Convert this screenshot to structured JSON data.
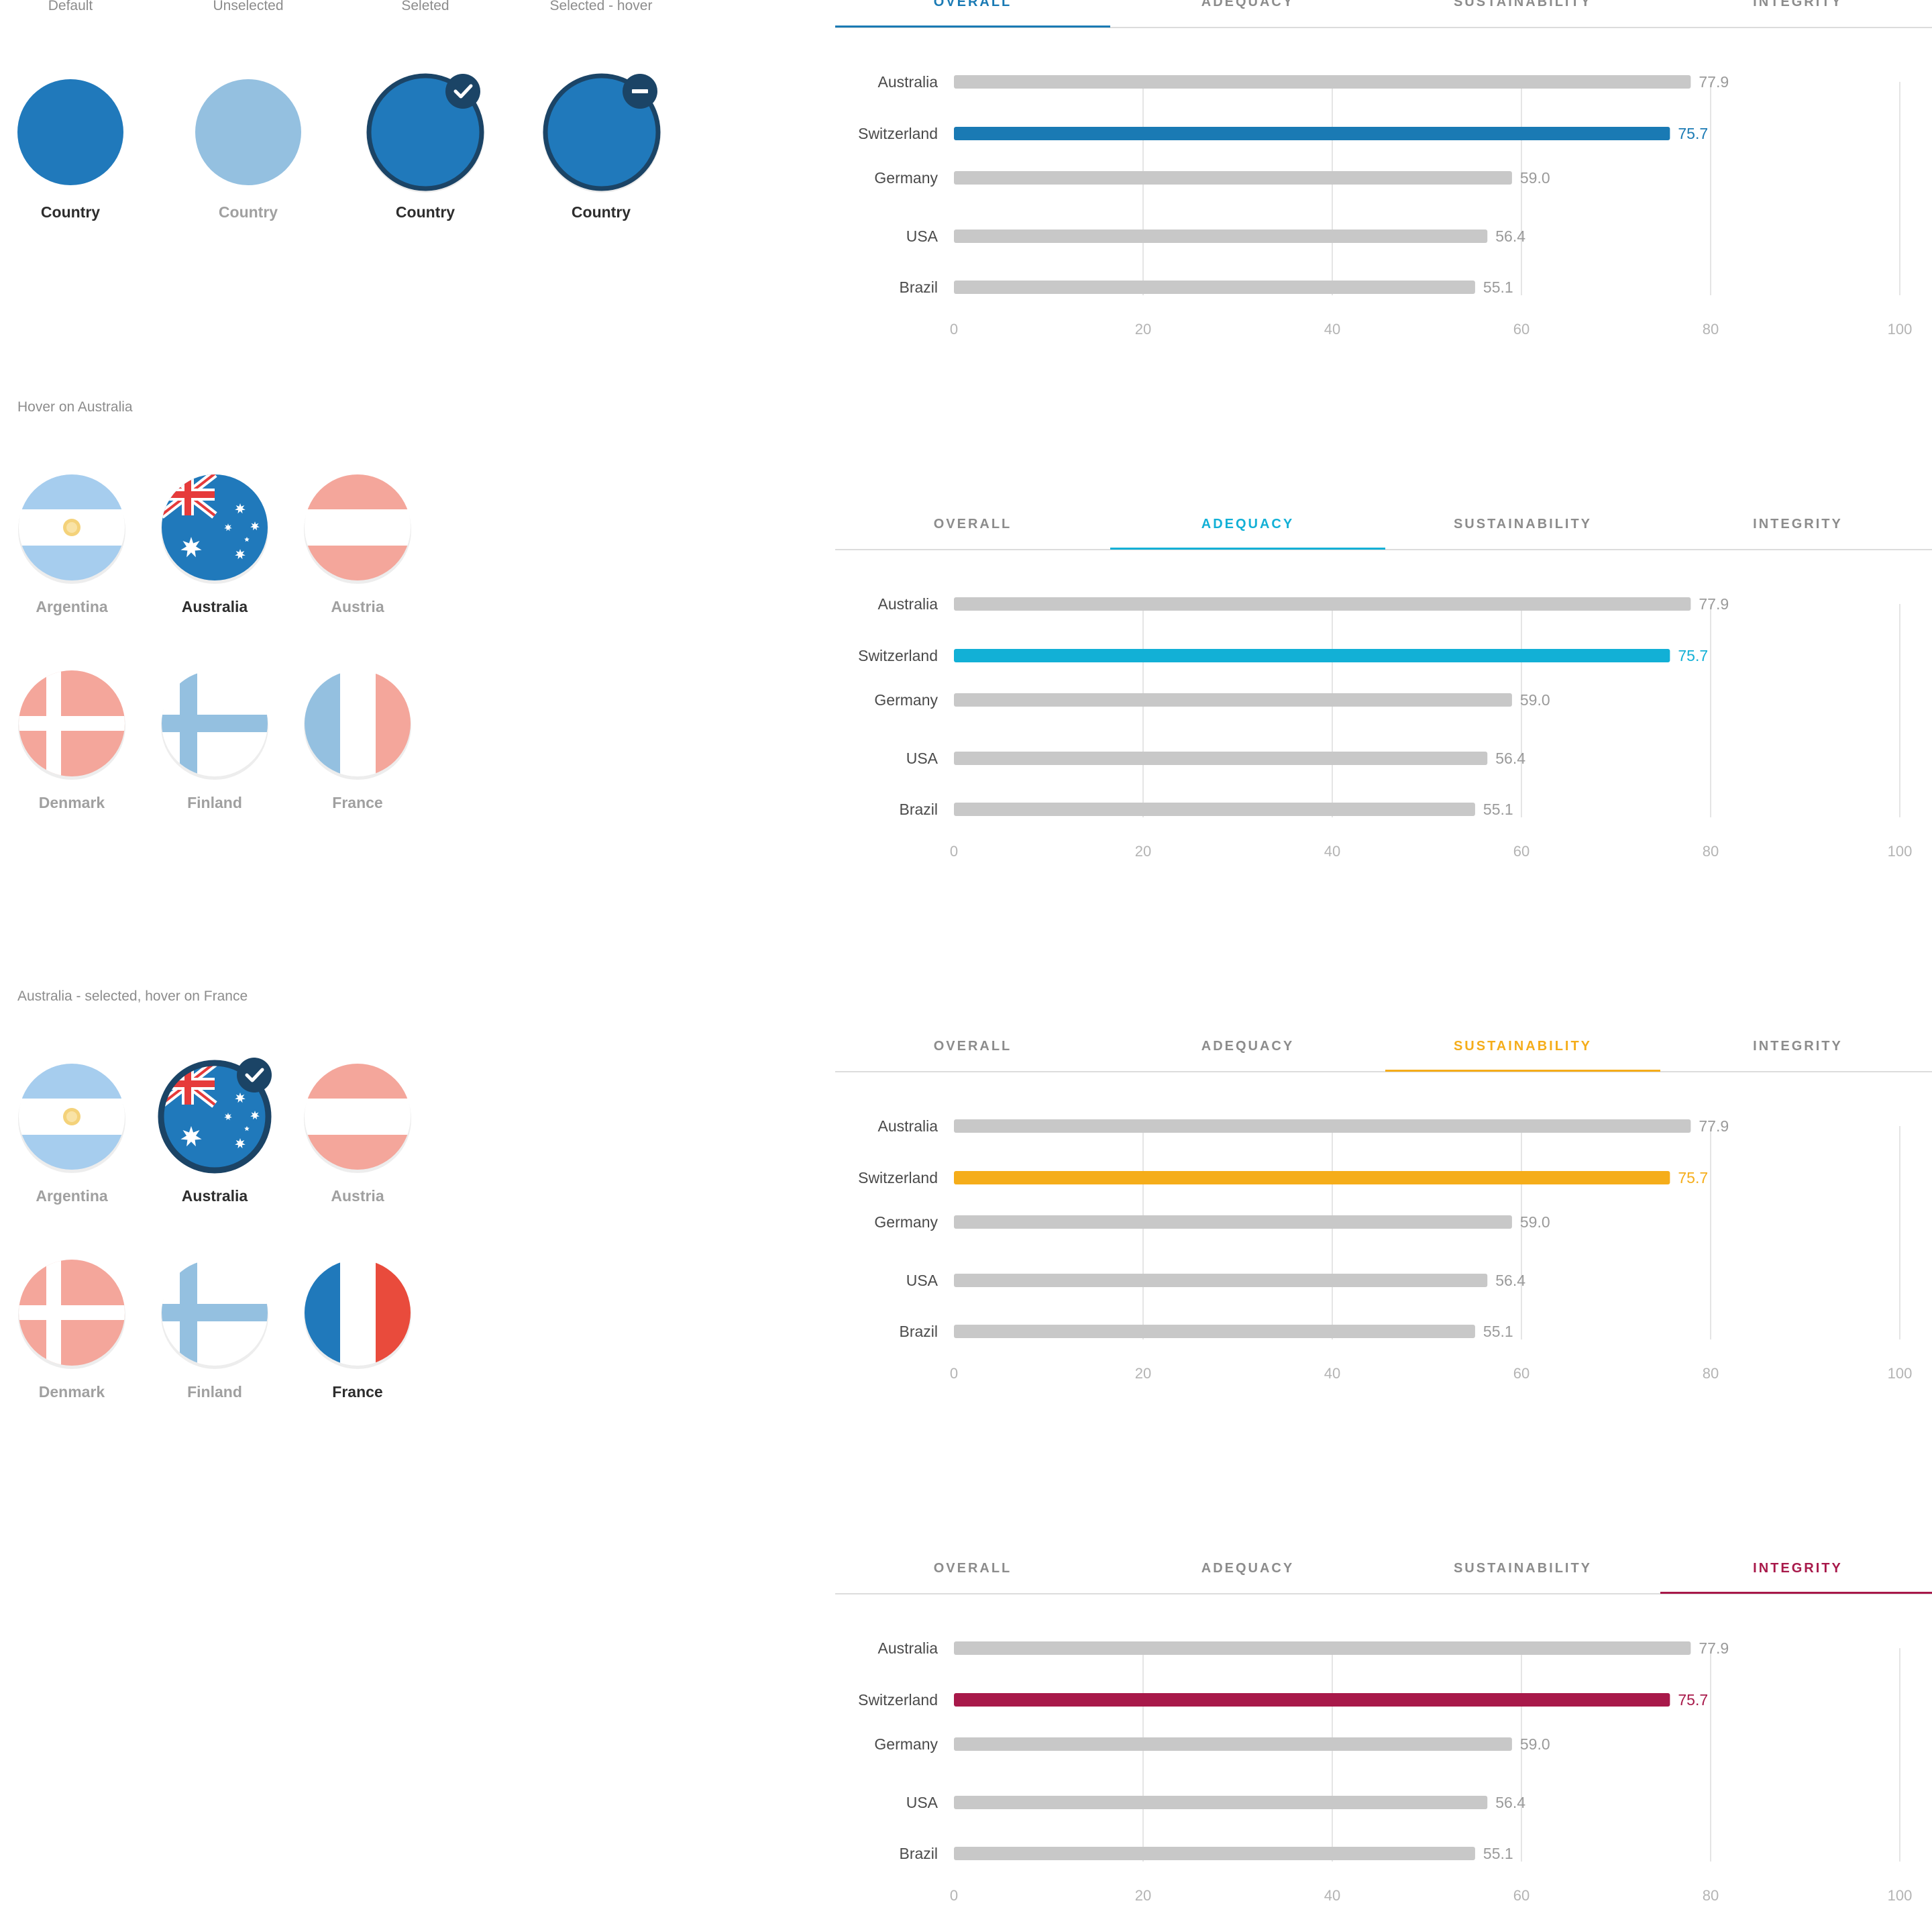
{
  "states": {
    "labels": [
      "Default",
      "Unselected",
      "Seleted",
      "Selected - hover"
    ],
    "circle_label": "Country",
    "colors": {
      "default": "#2079bb",
      "unselected": "#94c0e0",
      "selected_ring": "#1b4466"
    }
  },
  "section_hover": {
    "caption": "Hover on Australia"
  },
  "section_selected": {
    "caption": "Australia - selected, hover on France"
  },
  "grid1": {
    "items": [
      {
        "name": "Argentina",
        "state": "faded"
      },
      {
        "name": "Australia",
        "state": "hover"
      },
      {
        "name": "Austria",
        "state": "faded"
      },
      {
        "name": "Denmark",
        "state": "faded"
      },
      {
        "name": "Finland",
        "state": "faded"
      },
      {
        "name": "France",
        "state": "faded"
      }
    ]
  },
  "grid2": {
    "items": [
      {
        "name": "Argentina",
        "state": "faded"
      },
      {
        "name": "Australia",
        "state": "selected"
      },
      {
        "name": "Austria",
        "state": "faded"
      },
      {
        "name": "Denmark",
        "state": "faded"
      },
      {
        "name": "Finland",
        "state": "faded"
      },
      {
        "name": "France",
        "state": "hover"
      }
    ]
  },
  "tabs": [
    "OVERALL",
    "ADEQUACY",
    "SUSTAINABILITY",
    "INTEGRITY"
  ],
  "tab_colors": {
    "inactive": "#8c8c8c",
    "OVERALL": "#1a7ab4",
    "ADEQUACY": "#12b0d6",
    "SUSTAINABILITY": "#f5ad1a",
    "INTEGRITY": "#a8194a"
  },
  "chart_data": [
    {
      "type": "bar",
      "orientation": "horizontal",
      "active_tab": "OVERALL",
      "highlight_color": "#1a7ab4",
      "base_color": "#c8c8c8",
      "categories": [
        "Australia",
        "Switzerland",
        "Germany",
        "USA",
        "Brazil"
      ],
      "values": [
        77.9,
        75.7,
        59.0,
        56.4,
        55.1
      ],
      "labels": [
        "77.9",
        "75.7",
        "59.0",
        "56.4",
        "55.1"
      ],
      "highlight": "Switzerland",
      "xlim": [
        0,
        100
      ],
      "xticks": [
        "0",
        "20",
        "40",
        "60",
        "80",
        "100"
      ],
      "grid": true
    },
    {
      "type": "bar",
      "orientation": "horizontal",
      "active_tab": "ADEQUACY",
      "highlight_color": "#12b0d6",
      "base_color": "#c8c8c8",
      "categories": [
        "Australia",
        "Switzerland",
        "Germany",
        "USA",
        "Brazil"
      ],
      "values": [
        77.9,
        75.7,
        59.0,
        56.4,
        55.1
      ],
      "labels": [
        "77.9",
        "75.7",
        "59.0",
        "56.4",
        "55.1"
      ],
      "highlight": "Switzerland",
      "xlim": [
        0,
        100
      ],
      "xticks": [
        "0",
        "20",
        "40",
        "60",
        "80",
        "100"
      ],
      "grid": true
    },
    {
      "type": "bar",
      "orientation": "horizontal",
      "active_tab": "SUSTAINABILITY",
      "highlight_color": "#f5ad1a",
      "base_color": "#c8c8c8",
      "categories": [
        "Australia",
        "Switzerland",
        "Germany",
        "USA",
        "Brazil"
      ],
      "values": [
        77.9,
        75.7,
        59.0,
        56.4,
        55.1
      ],
      "labels": [
        "77.9",
        "75.7",
        "59.0",
        "56.4",
        "55.1"
      ],
      "highlight": "Switzerland",
      "xlim": [
        0,
        100
      ],
      "xticks": [
        "0",
        "20",
        "40",
        "60",
        "80",
        "100"
      ],
      "grid": true
    },
    {
      "type": "bar",
      "orientation": "horizontal",
      "active_tab": "INTEGRITY",
      "highlight_color": "#a8194a",
      "base_color": "#c8c8c8",
      "categories": [
        "Australia",
        "Switzerland",
        "Germany",
        "USA",
        "Brazil"
      ],
      "values": [
        77.9,
        75.7,
        59.0,
        56.4,
        55.1
      ],
      "labels": [
        "77.9",
        "75.7",
        "59.0",
        "56.4",
        "55.1"
      ],
      "highlight": "Switzerland",
      "xlim": [
        0,
        100
      ],
      "xticks": [
        "0",
        "20",
        "40",
        "60",
        "80",
        "100"
      ],
      "grid": true
    }
  ]
}
